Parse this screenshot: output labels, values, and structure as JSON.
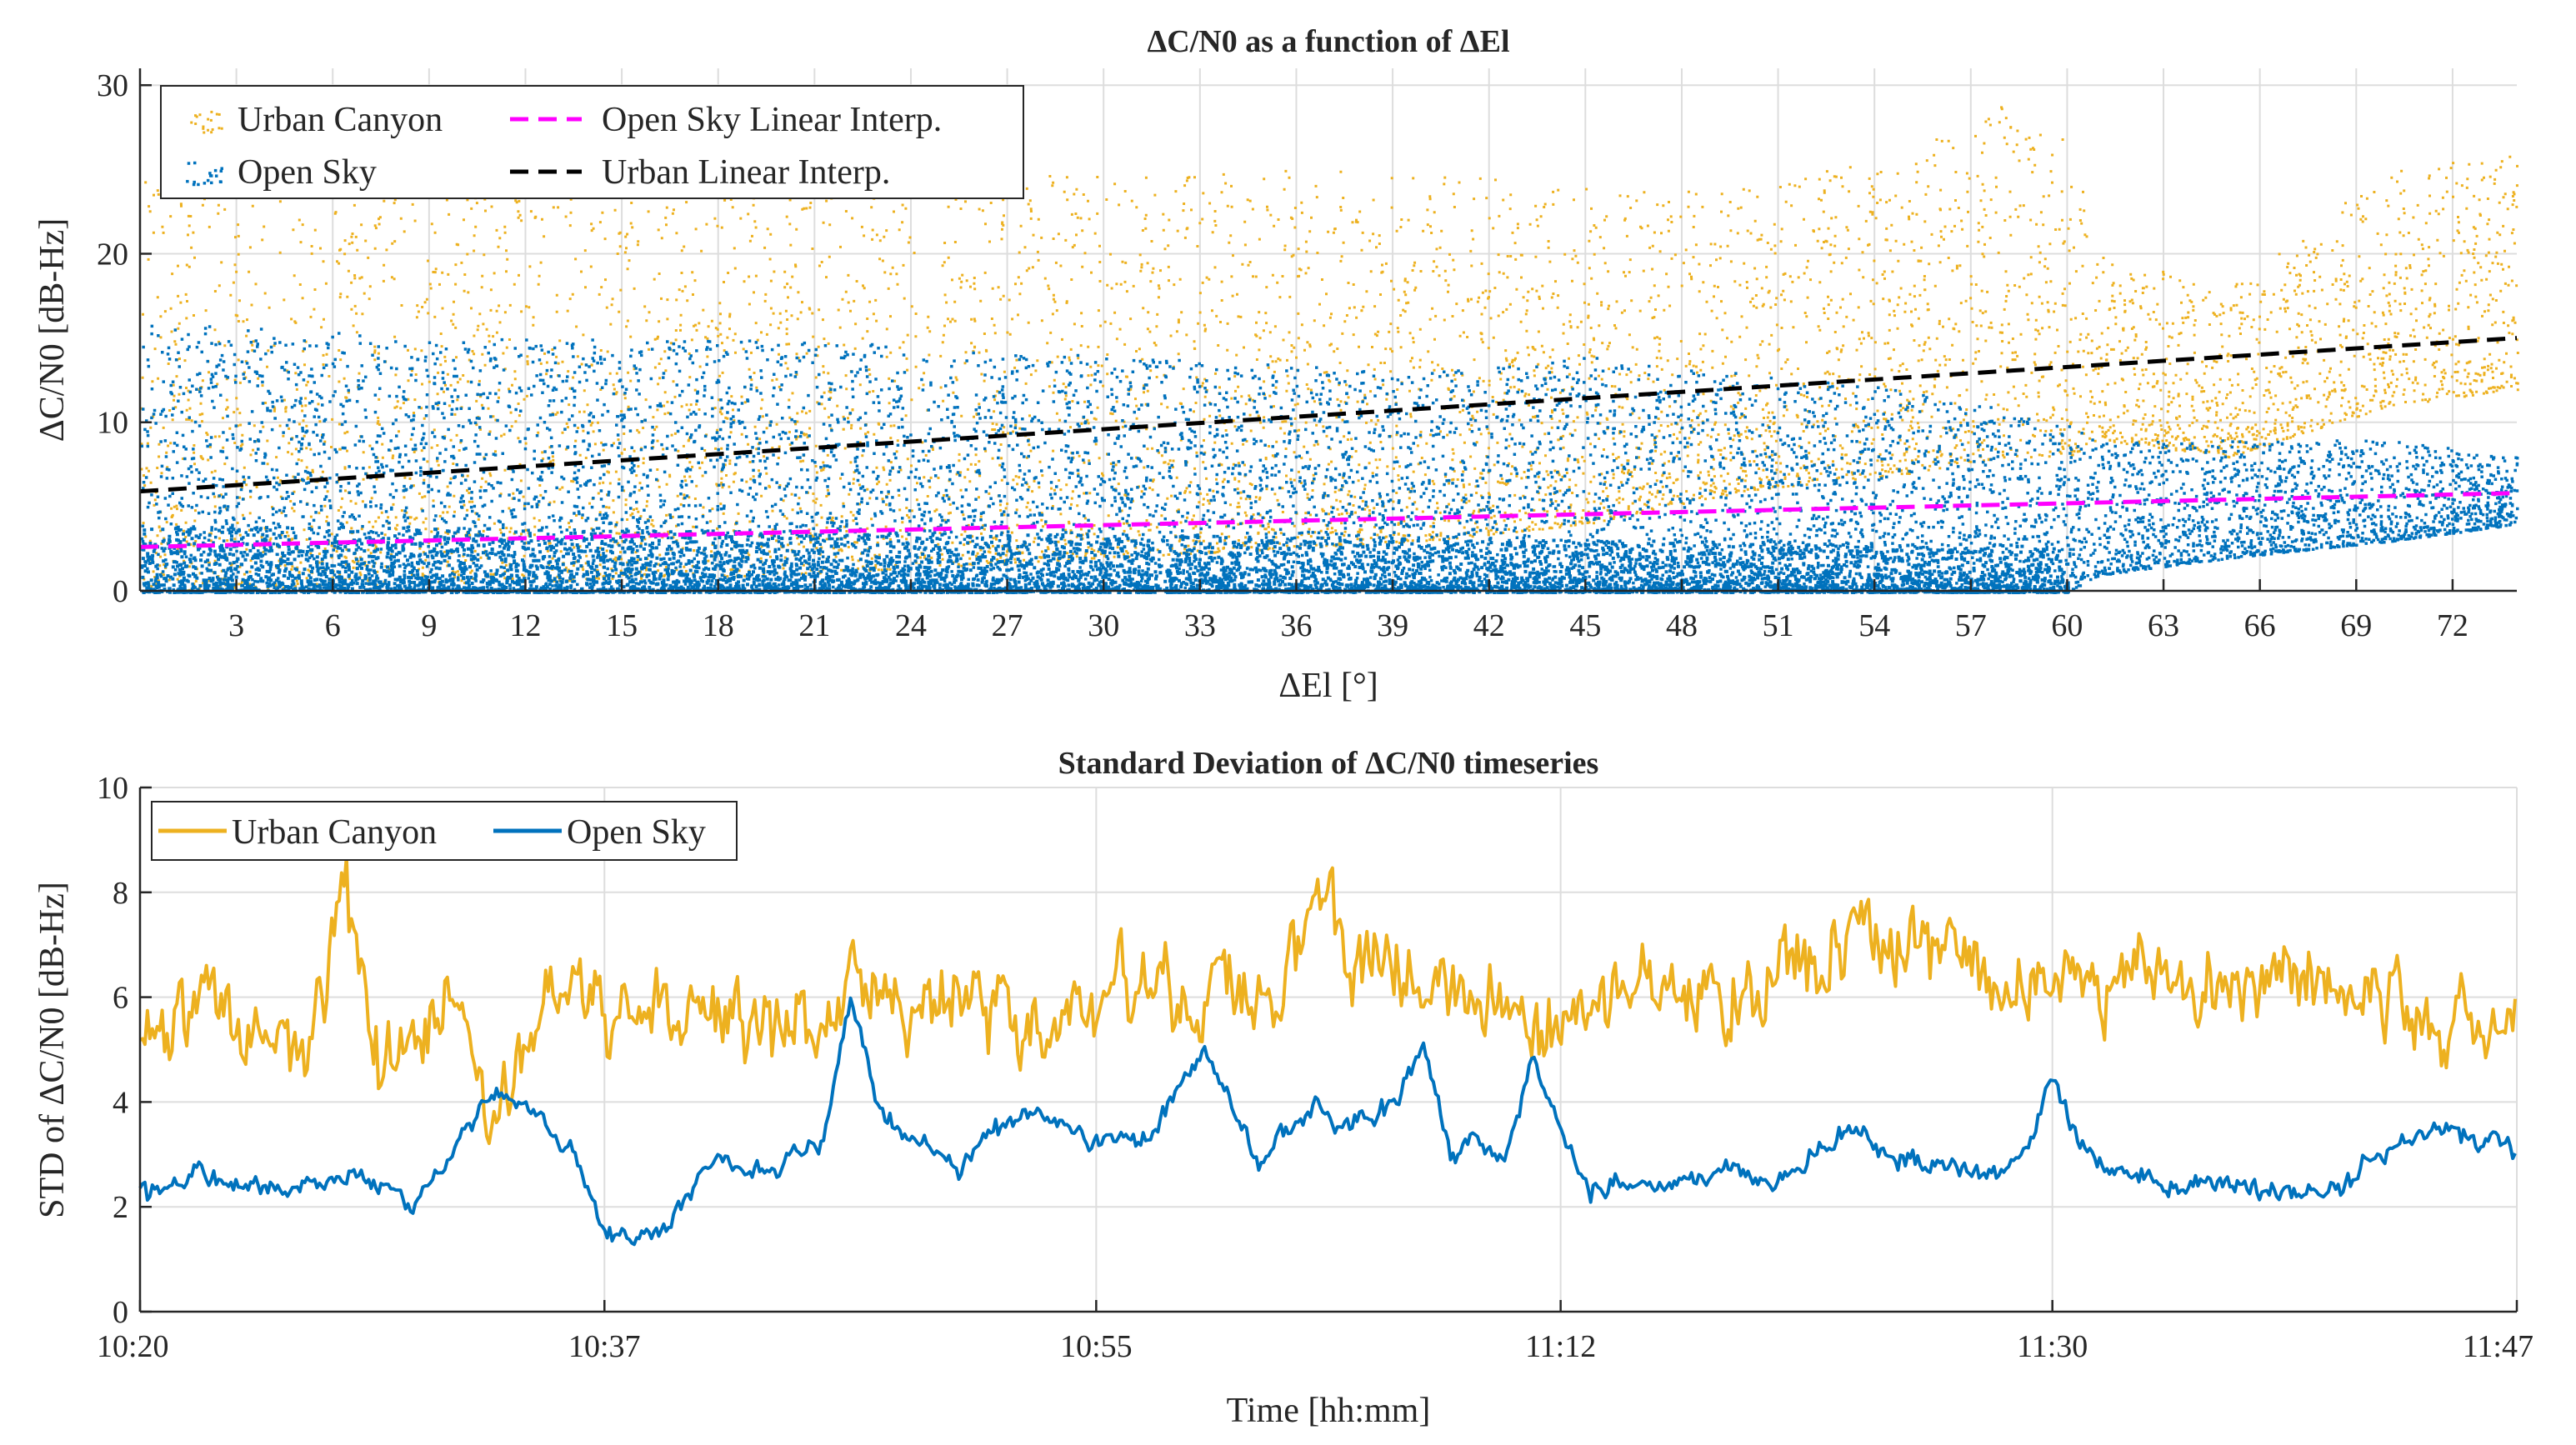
{
  "colors": {
    "urban": "#EDB120",
    "open": "#0072BD",
    "open_fit": "#FF00FF",
    "urban_fit": "#000000",
    "grid": "#DDDDDD",
    "axis": "#262626"
  },
  "chart_data": [
    {
      "type": "scatter",
      "title": "ΔC/N0 as a function of ΔEl",
      "xlabel": "ΔEl [°]",
      "ylabel": "ΔC/N0 [dB-Hz]",
      "xlim": [
        0,
        74
      ],
      "ylim": [
        0,
        31
      ],
      "xticks": [
        3,
        6,
        9,
        12,
        15,
        18,
        21,
        24,
        27,
        30,
        33,
        36,
        39,
        42,
        45,
        48,
        51,
        54,
        57,
        60,
        63,
        66,
        69,
        72
      ],
      "yticks": [
        0,
        10,
        20,
        30
      ],
      "legend_position": "top-left",
      "legend": {
        "urban": "Urban Canyon",
        "open": "Open Sky",
        "open_fit": "Open Sky Linear Interp.",
        "urban_fit": "Urban Linear Interp."
      },
      "series": [
        {
          "name": "Urban Canyon",
          "kind": "scatter",
          "x_range": [
            0,
            74
          ],
          "samples": 6500,
          "envelope": {
            "x": [
              0,
              10,
              20,
              30,
              40,
              45,
              50,
              55,
              58,
              60,
              61,
              65,
              70,
              74
            ],
            "lower": [
              0,
              0.5,
              1,
              2,
              3,
              4,
              6,
              7,
              8,
              8,
              9,
              8,
              11,
              12
            ],
            "upper": [
              26,
              27,
              26,
              25,
              25,
              24,
              24,
              26,
              29,
              27,
              20,
              18,
              25,
              26
            ]
          }
        },
        {
          "name": "Open Sky",
          "kind": "scatter",
          "x_range": [
            0,
            74
          ],
          "samples": 9000,
          "envelope": {
            "x": [
              0,
              10,
              20,
              30,
              40,
              45,
              50,
              55,
              60,
              61,
              65,
              70,
              74
            ],
            "lower": [
              0,
              0,
              0,
              0,
              0,
              0,
              0,
              0,
              0,
              1,
              2,
              3,
              4
            ],
            "upper": [
              16,
              15,
              15,
              14,
              13,
              14,
              13,
              12,
              10,
              9,
              9,
              9,
              8
            ]
          }
        },
        {
          "name": "Open Sky Linear Interp.",
          "kind": "line",
          "x": [
            0,
            74
          ],
          "y": [
            2.6,
            5.8
          ]
        },
        {
          "name": "Urban Linear Interp.",
          "kind": "line",
          "x": [
            0,
            74
          ],
          "y": [
            5.9,
            15.0
          ]
        }
      ]
    },
    {
      "type": "line",
      "title": "Standard Deviation of ΔC/N0 timeseries",
      "xlabel": "Time [hh:mm]",
      "ylabel": "STD of ΔC/N0 [dB-Hz]",
      "xlim_minutes": [
        620,
        707
      ],
      "ylim": [
        0,
        10
      ],
      "xticks": [
        {
          "minute": 620,
          "label": "10:20"
        },
        {
          "minute": 637,
          "label": "10:37"
        },
        {
          "minute": 655,
          "label": "10:55"
        },
        {
          "minute": 672,
          "label": "11:12"
        },
        {
          "minute": 690,
          "label": "11:30"
        },
        {
          "minute": 707,
          "label": "11:47"
        }
      ],
      "yticks": [
        0,
        2,
        4,
        6,
        8,
        10
      ],
      "legend_position": "top-left",
      "legend": {
        "urban": "Urban Canyon",
        "open": "Open Sky"
      },
      "series": [
        {
          "name": "Urban Canyon",
          "x_minutes": [
            620,
            622,
            624,
            626,
            627.5,
            628.5,
            630,
            632,
            633,
            635,
            637,
            639,
            641,
            643,
            645,
            646,
            647,
            649,
            651,
            653,
            655,
            657,
            659,
            662,
            663.5,
            664,
            666,
            668,
            670,
            672,
            674,
            676,
            678,
            680,
            682,
            683,
            684,
            686,
            688,
            690,
            692,
            694,
            696,
            698,
            700,
            702,
            704,
            705,
            707
          ],
          "values": [
            5.0,
            5.8,
            5.2,
            4.8,
            8.4,
            4.5,
            5.2,
            5.8,
            3.9,
            6.0,
            5.3,
            5.6,
            5.7,
            5.4,
            5.5,
            6.5,
            5.9,
            6.0,
            5.8,
            5.6,
            5.8,
            6.4,
            6.2,
            6.3,
            8.5,
            6.5,
            6.8,
            6.2,
            5.8,
            5.4,
            6.0,
            6.3,
            6.1,
            6.5,
            6.8,
            7.5,
            6.7,
            6.9,
            6.4,
            6.2,
            6.0,
            6.6,
            6.1,
            6.5,
            6.3,
            5.9,
            5.6,
            5.8,
            5.9
          ],
          "noise": 0.9
        },
        {
          "name": "Open Sky",
          "x_minutes": [
            620,
            622,
            624,
            626,
            628,
            629,
            630,
            631,
            632,
            633,
            634,
            636,
            637,
            638,
            639,
            640,
            641,
            643,
            645,
            646,
            647,
            648,
            649,
            650,
            651,
            653,
            655,
            657,
            658,
            659,
            660,
            661,
            662,
            663,
            664,
            666,
            667,
            668,
            669,
            670,
            671,
            672,
            673,
            674,
            676,
            678,
            680,
            682,
            683,
            684,
            686,
            688,
            689,
            690,
            691,
            692,
            693,
            694,
            696,
            698,
            700,
            702,
            704,
            705,
            707
          ],
          "values": [
            2.2,
            2.6,
            2.4,
            2.4,
            2.6,
            2.3,
            2.1,
            2.6,
            3.6,
            4.2,
            3.9,
            3.0,
            1.5,
            1.4,
            1.5,
            2.2,
            2.8,
            2.7,
            3.3,
            6.0,
            4.0,
            3.3,
            3.1,
            2.7,
            3.5,
            3.8,
            3.2,
            3.3,
            4.2,
            5.0,
            3.8,
            2.8,
            3.5,
            3.9,
            3.5,
            4.0,
            5.1,
            3.0,
            3.3,
            3.0,
            4.8,
            3.6,
            2.3,
            2.4,
            2.4,
            2.7,
            2.5,
            3.3,
            3.4,
            3.0,
            2.8,
            2.6,
            2.9,
            4.6,
            3.2,
            2.8,
            2.6,
            2.4,
            2.4,
            2.3,
            2.2,
            3.0,
            3.4,
            3.4,
            3.1
          ],
          "noise": 0.35
        }
      ]
    }
  ]
}
